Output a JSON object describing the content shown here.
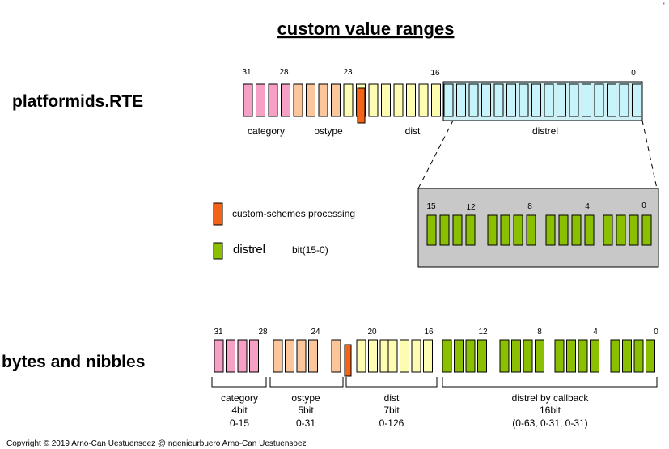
{
  "title": "custom value ranges",
  "colors": {
    "category": "#f6a0c6",
    "ostype": "#fcc69c",
    "dist": "#fefcb0",
    "distrel_top": "#c6f4fa",
    "distrel_top_box": "#cef0f4",
    "custom": "#f46418",
    "distrel_green": "#8ac000",
    "zoom_box": "#c8c8c8"
  },
  "top": {
    "label": "platformids.RTE",
    "bit_numbers": [
      {
        "bit": 31,
        "text": "31"
      },
      {
        "bit": 28,
        "text": "28"
      },
      {
        "bit": 23,
        "text": "23"
      },
      {
        "bit": 16,
        "text": "16"
      },
      {
        "bit": 0,
        "text": "0"
      }
    ],
    "fields": [
      {
        "name": "category",
        "from": 31,
        "to": 28,
        "color": "category"
      },
      {
        "name": "ostype",
        "from": 27,
        "to": 24,
        "color": "ostype"
      },
      {
        "name": "dist",
        "from": 23,
        "to": 16,
        "color": "dist"
      },
      {
        "name": "distrel",
        "from": 15,
        "to": 0,
        "color": "distrel_top"
      }
    ]
  },
  "zoom": {
    "bit_numbers": [
      {
        "bit": 15,
        "text": "15"
      },
      {
        "bit": 12,
        "text": "12"
      },
      {
        "bit": 8,
        "text": "8"
      },
      {
        "bit": 4,
        "text": "4"
      },
      {
        "bit": 0,
        "text": "0"
      }
    ]
  },
  "legend": {
    "custom_label": "custom-schemes processing",
    "distrel_label": "distrel",
    "distrel_bits": "bit(15-0)"
  },
  "bottom": {
    "label": "bytes and nibbles",
    "bit_numbers": [
      {
        "bit": 31,
        "text": "31"
      },
      {
        "bit": 28,
        "text": "28"
      },
      {
        "bit": 24,
        "text": "24"
      },
      {
        "bit": 20,
        "text": "20"
      },
      {
        "bit": 16,
        "text": "16"
      },
      {
        "bit": 12,
        "text": "12"
      },
      {
        "bit": 8,
        "text": "8"
      },
      {
        "bit": 4,
        "text": "4"
      },
      {
        "bit": 0,
        "text": "0"
      }
    ],
    "groups": [
      {
        "name": "category",
        "bits": "4bit",
        "range": "0-15"
      },
      {
        "name": "ostype",
        "bits": "5bit",
        "range": "0-31"
      },
      {
        "name": "dist",
        "bits": "7bit",
        "range": "0-126"
      },
      {
        "name": "distrel by callback",
        "bits": "16bit",
        "range": "(0-63, 0-31, 0-31)"
      }
    ]
  },
  "copyright": "Copyright © 2019 Arno-Can Uestuensoez @Ingenieurbuero Arno-Can Uestuensoez",
  "corner_mark": "'"
}
